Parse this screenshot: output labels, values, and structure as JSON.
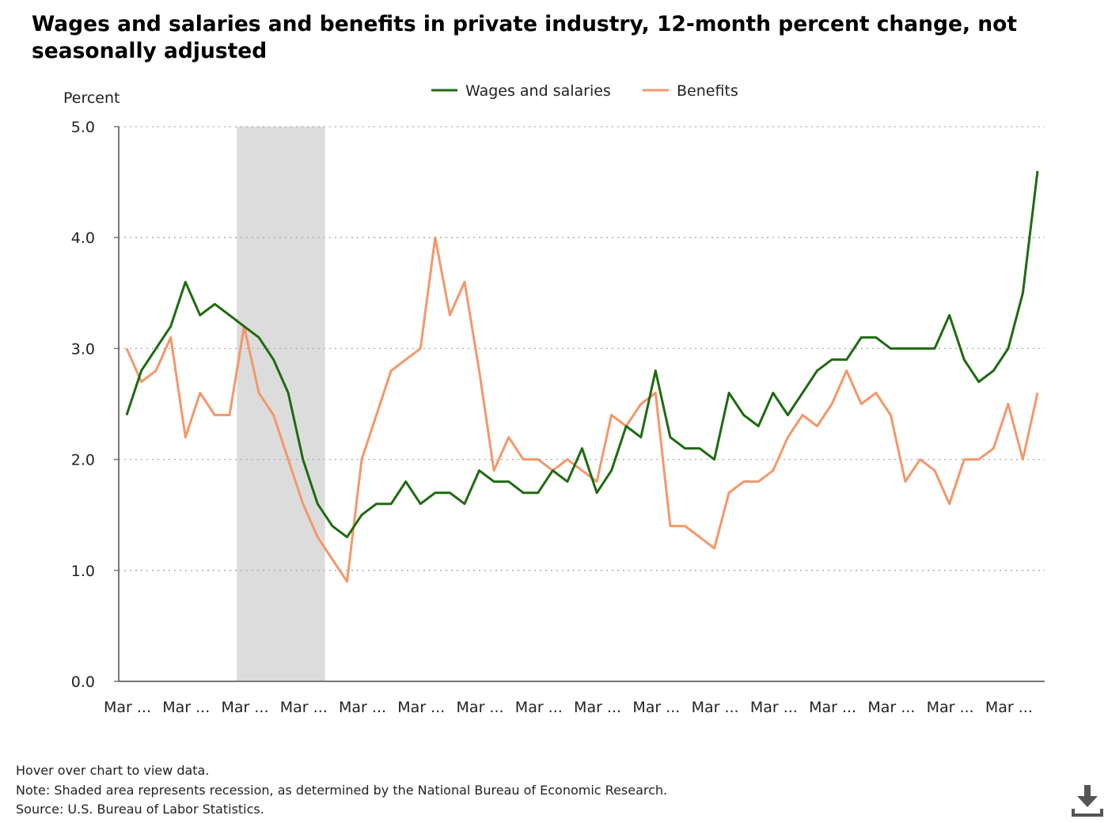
{
  "title": "Wages and salaries and benefits in private industry, 12-month percent change, not seasonally adjusted",
  "colors": {
    "wages": "#1e6b10",
    "benefits": "#f4976a",
    "recession": "#dcdcdc",
    "grid": "#aaaaaa",
    "axis": "#777777"
  },
  "footer": {
    "hover_note": "Hover over chart to view data.",
    "note": "Note: Shaded area represents recession, as determined by the National Bureau of Economic Research.",
    "source": "Source: U.S. Bureau of Labor Statistics."
  },
  "download_icon": "download-icon",
  "chart_data": {
    "type": "line",
    "ylabel": "Percent",
    "xlabel": "",
    "ylim": [
      0,
      5
    ],
    "yticks": [
      "0.0",
      "1.0",
      "2.0",
      "3.0",
      "4.0",
      "5.0"
    ],
    "xtick_labels": [
      "Mar ...",
      "Mar ...",
      "Mar ...",
      "Mar ...",
      "Mar ...",
      "Mar ...",
      "Mar ...",
      "Mar ...",
      "Mar ...",
      "Mar ...",
      "Mar ...",
      "Mar ...",
      "Mar ...",
      "Mar ...",
      "Mar ...",
      "Mar ..."
    ],
    "grid": true,
    "legend_position": "top",
    "recession_band_index_range": [
      7.5,
      13.5
    ],
    "series": [
      {
        "name": "Wages and salaries",
        "color": "#1e6b10",
        "values": [
          2.4,
          2.8,
          3.0,
          3.2,
          3.6,
          3.3,
          3.4,
          3.3,
          3.2,
          3.1,
          2.9,
          2.6,
          2.0,
          1.6,
          1.4,
          1.3,
          1.5,
          1.6,
          1.6,
          1.8,
          1.6,
          1.7,
          1.7,
          1.6,
          1.9,
          1.8,
          1.8,
          1.7,
          1.7,
          1.9,
          1.8,
          2.1,
          1.7,
          1.9,
          2.3,
          2.2,
          2.8,
          2.2,
          2.1,
          2.1,
          2.0,
          2.6,
          2.4,
          2.3,
          2.6,
          2.4,
          2.6,
          2.8,
          2.9,
          2.9,
          3.1,
          3.1,
          3.0,
          3.0,
          3.0,
          3.0,
          3.3,
          2.9,
          2.7,
          2.8,
          3.0,
          3.5,
          4.6
        ]
      },
      {
        "name": "Benefits",
        "color": "#f4976a",
        "values": [
          3.0,
          2.7,
          2.8,
          3.1,
          2.2,
          2.6,
          2.4,
          2.4,
          3.2,
          2.6,
          2.4,
          2.0,
          1.6,
          1.3,
          1.1,
          0.9,
          2.0,
          2.4,
          2.8,
          2.9,
          3.0,
          4.0,
          3.3,
          3.6,
          2.8,
          1.9,
          2.2,
          2.0,
          2.0,
          1.9,
          2.0,
          1.9,
          1.8,
          2.4,
          2.3,
          2.5,
          2.6,
          1.4,
          1.4,
          1.3,
          1.2,
          1.7,
          1.8,
          1.8,
          1.9,
          2.2,
          2.4,
          2.3,
          2.5,
          2.8,
          2.5,
          2.6,
          2.4,
          1.8,
          2.0,
          1.9,
          1.6,
          2.0,
          2.0,
          2.1,
          2.5,
          2.0,
          2.6
        ]
      }
    ]
  }
}
